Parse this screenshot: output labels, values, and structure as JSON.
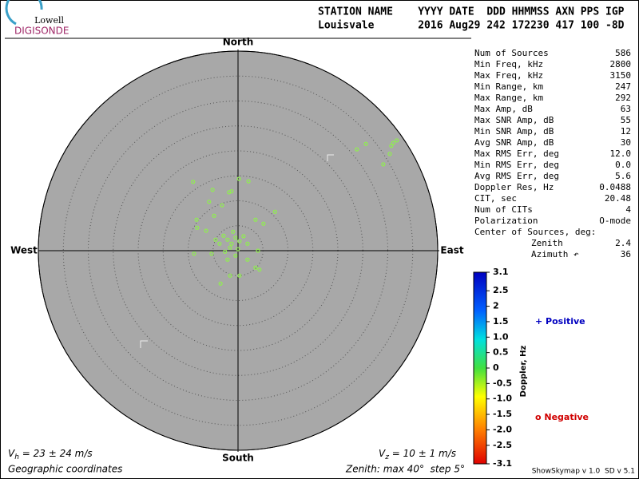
{
  "logo": {
    "top": "Lowell",
    "bottom": "DIGISONDE"
  },
  "header": {
    "columns": "STATION NAME    YYYY DATE  DDD HHMMSS AXN PPS IGP",
    "values": "Louisvale       2016 Aug29 242 172230 417 100 -8D"
  },
  "compass": {
    "north": "North",
    "south": "South",
    "east": "East",
    "west": "West"
  },
  "stats": {
    "rows": [
      [
        "Num of Sources",
        "586"
      ],
      [
        "Min Freq, kHz",
        "2800"
      ],
      [
        "Max Freq, kHz",
        "3150"
      ],
      [
        "Min Range, km",
        "247"
      ],
      [
        "Max Range, km",
        "292"
      ],
      [
        "Max Amp, dB",
        "63"
      ],
      [
        "Max SNR Amp, dB",
        "55"
      ],
      [
        "Min SNR Amp, dB",
        "12"
      ],
      [
        "Avg SNR Amp, dB",
        "30"
      ],
      [
        "Max RMS Err, deg",
        "12.0"
      ],
      [
        "Min RMS Err, deg",
        "0.0"
      ],
      [
        "Avg RMS Err, deg",
        "5.6"
      ],
      [
        "Doppler Res, Hz",
        "0.0488"
      ],
      [
        "CIT, sec",
        "20.48"
      ],
      [
        "Num of CITs",
        "4"
      ],
      [
        "Polarization",
        "O-mode"
      ],
      [
        "Center of Sources, deg:",
        ""
      ]
    ],
    "sub": [
      [
        "Zenith",
        "2.4"
      ],
      [
        "Azimuth ↶",
        "36"
      ]
    ]
  },
  "legend": {
    "positive": "+ Positive",
    "negative": "o Negative"
  },
  "footer": {
    "vh_sym": "V",
    "vh_sub": "h",
    "vh_text": " = 23 ± 24 m/s",
    "vz_sym": "V",
    "vz_sub": "z",
    "vz_text": " = 10 ± 1 m/s",
    "coords": "Geographic coordinates",
    "zenith": "Zenith: max 40°  step 5°",
    "version": "ShowSkymap v 1.0  SD v 5.1"
  },
  "chart_data": {
    "type": "scatter",
    "color": "#90ee50",
    "xlim": [
      -40,
      40
    ],
    "ylim": [
      -40,
      40
    ],
    "rticks": [
      5,
      10,
      15,
      20,
      25,
      30,
      35,
      40
    ],
    "x": [
      23.8,
      25.6,
      30.7,
      31.8,
      31.1,
      29.1,
      30.4,
      -9.0,
      0.2,
      2.1,
      -5.1,
      -1.8,
      -1.3,
      -3.2,
      -5.8,
      7.4,
      -8.3,
      -8.2,
      -6.4,
      -4.8,
      3.5,
      5.1,
      4.0,
      1.9,
      3.5,
      4.3,
      0.3,
      -1.6,
      -3.5,
      -8.8,
      -5.3,
      -2.1,
      -1.3,
      -2.9,
      -0.5,
      0.3,
      -1.6,
      -1.0,
      1.1,
      -3.7,
      1.9,
      -2.6,
      0.0,
      -0.5,
      -2.1,
      -4.5
    ],
    "y": [
      20.3,
      21.4,
      21.0,
      22.1,
      21.6,
      17.3,
      19.4,
      13.8,
      14.4,
      13.9,
      12.2,
      11.7,
      11.9,
      9.1,
      9.8,
      7.8,
      6.2,
      4.6,
      4.0,
      7.0,
      6.2,
      5.4,
      0.0,
      -1.8,
      -3.4,
      -3.8,
      -5.0,
      -5.0,
      -6.6,
      -0.6,
      -0.6,
      2.2,
      1.4,
      3.0,
      2.6,
      1.9,
      0.6,
      3.8,
      2.9,
      1.4,
      1.4,
      -0.2,
      0.3,
      -1.0,
      -1.8,
      2.2
    ],
    "colorbar": {
      "label": "Doppler, Hz",
      "lim": [
        -3.1,
        3.1
      ],
      "ticks": [
        3.1,
        2.5,
        2.0,
        1.5,
        {
          "value": 1,
          "label": "1.0"
        },
        0.5,
        0,
        -0.5,
        {
          "value": -1,
          "label": "-1.0"
        },
        -1.5,
        {
          "value": -2,
          "label": "-2.0"
        },
        -2.5,
        -3.1
      ]
    }
  }
}
